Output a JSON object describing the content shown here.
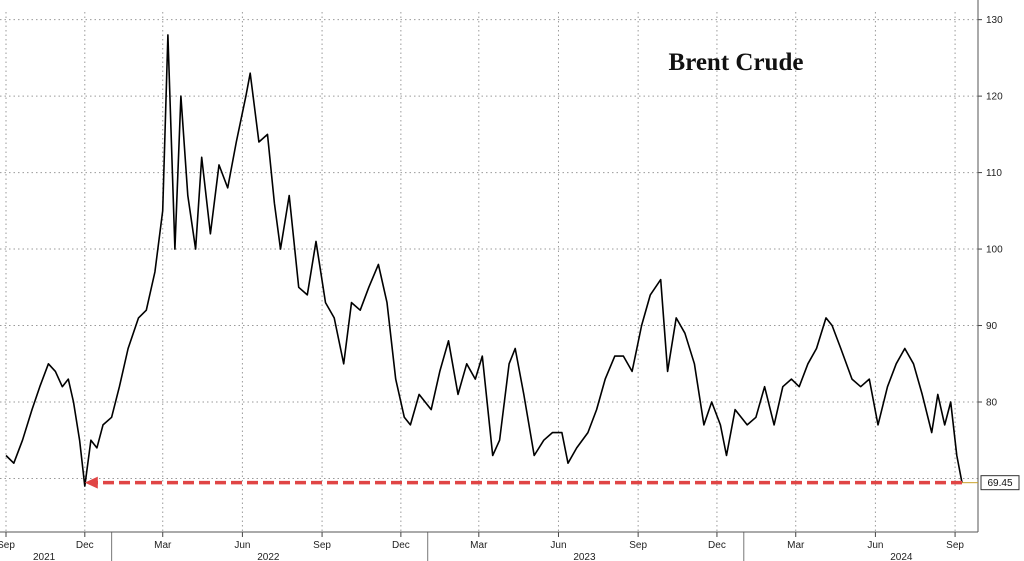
{
  "chart_data": {
    "type": "line",
    "title": "Brent Crude",
    "ylim": [
      63,
      131
    ],
    "yticks": [
      80,
      90,
      100,
      110,
      120,
      130
    ],
    "grid": true,
    "xlim": [
      "2021-09-01",
      "2024-09-09"
    ],
    "xticks": [
      {
        "date": "2021-09-01",
        "label": "Sep"
      },
      {
        "date": "2021-12-01",
        "label": "Dec"
      },
      {
        "date": "2022-03-01",
        "label": "Mar"
      },
      {
        "date": "2022-06-01",
        "label": "Jun"
      },
      {
        "date": "2022-09-01",
        "label": "Sep"
      },
      {
        "date": "2022-12-01",
        "label": "Dec"
      },
      {
        "date": "2023-03-01",
        "label": "Mar"
      },
      {
        "date": "2023-06-01",
        "label": "Jun"
      },
      {
        "date": "2023-09-01",
        "label": "Sep"
      },
      {
        "date": "2023-12-01",
        "label": "Dec"
      },
      {
        "date": "2024-03-01",
        "label": "Mar"
      },
      {
        "date": "2024-06-01",
        "label": "Jun"
      },
      {
        "date": "2024-09-01",
        "label": "Sep"
      }
    ],
    "years": [
      {
        "date": "2021-10-15",
        "label": "2021"
      },
      {
        "date": "2022-07-01",
        "label": "2022"
      },
      {
        "date": "2023-07-01",
        "label": "2023"
      },
      {
        "date": "2024-07-01",
        "label": "2024"
      }
    ],
    "last_value_label": "69.45",
    "series": [
      {
        "color": "#000000",
        "points": [
          [
            "2021-09-01",
            73
          ],
          [
            "2021-09-10",
            72
          ],
          [
            "2021-09-20",
            75
          ],
          [
            "2021-10-01",
            79
          ],
          [
            "2021-10-10",
            82
          ],
          [
            "2021-10-20",
            85
          ],
          [
            "2021-10-28",
            84
          ],
          [
            "2021-11-05",
            82
          ],
          [
            "2021-11-12",
            83
          ],
          [
            "2021-11-18",
            80
          ],
          [
            "2021-11-25",
            75
          ],
          [
            "2021-12-01",
            69
          ],
          [
            "2021-12-08",
            75
          ],
          [
            "2021-12-15",
            74
          ],
          [
            "2021-12-22",
            77
          ],
          [
            "2022-01-01",
            78
          ],
          [
            "2022-01-10",
            82
          ],
          [
            "2022-01-20",
            87
          ],
          [
            "2022-02-01",
            91
          ],
          [
            "2022-02-10",
            92
          ],
          [
            "2022-02-20",
            97
          ],
          [
            "2022-03-01",
            105
          ],
          [
            "2022-03-07",
            128
          ],
          [
            "2022-03-15",
            100
          ],
          [
            "2022-03-22",
            120
          ],
          [
            "2022-03-30",
            107
          ],
          [
            "2022-04-08",
            100
          ],
          [
            "2022-04-15",
            112
          ],
          [
            "2022-04-25",
            102
          ],
          [
            "2022-05-05",
            111
          ],
          [
            "2022-05-15",
            108
          ],
          [
            "2022-05-25",
            114
          ],
          [
            "2022-06-05",
            120
          ],
          [
            "2022-06-10",
            123
          ],
          [
            "2022-06-20",
            114
          ],
          [
            "2022-06-30",
            115
          ],
          [
            "2022-07-08",
            106
          ],
          [
            "2022-07-15",
            100
          ],
          [
            "2022-07-25",
            107
          ],
          [
            "2022-08-05",
            95
          ],
          [
            "2022-08-15",
            94
          ],
          [
            "2022-08-25",
            101
          ],
          [
            "2022-09-05",
            93
          ],
          [
            "2022-09-15",
            91
          ],
          [
            "2022-09-26",
            85
          ],
          [
            "2022-10-05",
            93
          ],
          [
            "2022-10-15",
            92
          ],
          [
            "2022-10-25",
            95
          ],
          [
            "2022-11-05",
            98
          ],
          [
            "2022-11-15",
            93
          ],
          [
            "2022-11-25",
            83
          ],
          [
            "2022-12-05",
            78
          ],
          [
            "2022-12-12",
            77
          ],
          [
            "2022-12-22",
            81
          ],
          [
            "2023-01-05",
            79
          ],
          [
            "2023-01-15",
            84
          ],
          [
            "2023-01-25",
            88
          ],
          [
            "2023-02-05",
            81
          ],
          [
            "2023-02-15",
            85
          ],
          [
            "2023-02-25",
            83
          ],
          [
            "2023-03-05",
            86
          ],
          [
            "2023-03-17",
            73
          ],
          [
            "2023-03-25",
            75
          ],
          [
            "2023-04-05",
            85
          ],
          [
            "2023-04-12",
            87
          ],
          [
            "2023-04-22",
            81
          ],
          [
            "2023-05-04",
            73
          ],
          [
            "2023-05-15",
            75
          ],
          [
            "2023-05-25",
            76
          ],
          [
            "2023-06-05",
            76
          ],
          [
            "2023-06-12",
            72
          ],
          [
            "2023-06-22",
            74
          ],
          [
            "2023-07-05",
            76
          ],
          [
            "2023-07-15",
            79
          ],
          [
            "2023-07-25",
            83
          ],
          [
            "2023-08-05",
            86
          ],
          [
            "2023-08-15",
            86
          ],
          [
            "2023-08-25",
            84
          ],
          [
            "2023-09-05",
            90
          ],
          [
            "2023-09-15",
            94
          ],
          [
            "2023-09-27",
            96
          ],
          [
            "2023-10-05",
            84
          ],
          [
            "2023-10-15",
            91
          ],
          [
            "2023-10-25",
            89
          ],
          [
            "2023-11-05",
            85
          ],
          [
            "2023-11-16",
            77
          ],
          [
            "2023-11-25",
            80
          ],
          [
            "2023-12-05",
            77
          ],
          [
            "2023-12-12",
            73
          ],
          [
            "2023-12-22",
            79
          ],
          [
            "2024-01-05",
            77
          ],
          [
            "2024-01-15",
            78
          ],
          [
            "2024-01-25",
            82
          ],
          [
            "2024-02-05",
            77
          ],
          [
            "2024-02-15",
            82
          ],
          [
            "2024-02-25",
            83
          ],
          [
            "2024-03-05",
            82
          ],
          [
            "2024-03-15",
            85
          ],
          [
            "2024-03-25",
            87
          ],
          [
            "2024-04-05",
            91
          ],
          [
            "2024-04-12",
            90
          ],
          [
            "2024-04-22",
            87
          ],
          [
            "2024-05-05",
            83
          ],
          [
            "2024-05-15",
            82
          ],
          [
            "2024-05-25",
            83
          ],
          [
            "2024-06-04",
            77
          ],
          [
            "2024-06-15",
            82
          ],
          [
            "2024-06-25",
            85
          ],
          [
            "2024-07-05",
            87
          ],
          [
            "2024-07-15",
            85
          ],
          [
            "2024-07-25",
            81
          ],
          [
            "2024-08-05",
            76
          ],
          [
            "2024-08-12",
            81
          ],
          [
            "2024-08-20",
            77
          ],
          [
            "2024-08-27",
            80
          ],
          [
            "2024-09-03",
            73
          ],
          [
            "2024-09-09",
            69.45
          ]
        ]
      }
    ],
    "annotation": {
      "type": "arrow",
      "color": "#e04545",
      "y": 69.45,
      "from": "2024-09-09",
      "to": "2021-12-01"
    }
  }
}
